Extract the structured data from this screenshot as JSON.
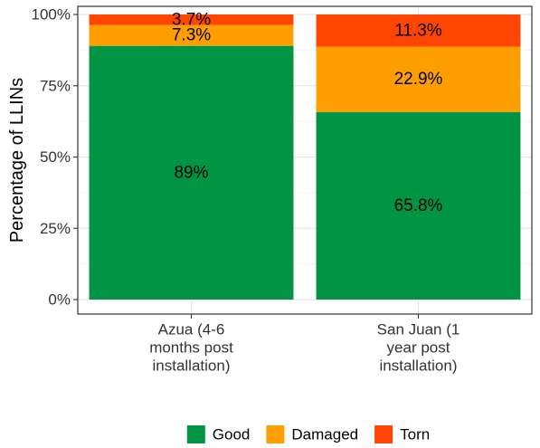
{
  "chart_data": {
    "type": "bar",
    "stacked": true,
    "normalized": true,
    "categories": [
      [
        "Azua (4-6",
        "months post",
        "installation)"
      ],
      [
        "San Juan (1",
        "year post",
        "installation)"
      ]
    ],
    "series": [
      {
        "name": "Good",
        "color": "#009444",
        "values": [
          89.0,
          65.8
        ],
        "labels": [
          "89%",
          "65.8%"
        ]
      },
      {
        "name": "Damaged",
        "color": "#FF9E00",
        "values": [
          7.3,
          22.9
        ],
        "labels": [
          "7.3%",
          "22.9%"
        ]
      },
      {
        "name": "Torn",
        "color": "#FF4500",
        "values": [
          3.7,
          11.3
        ],
        "labels": [
          "3.7%",
          "11.3%"
        ]
      }
    ],
    "ylabel": "Percentage of LLINs",
    "ylim": [
      0,
      100
    ],
    "yticks": [
      0,
      25,
      50,
      75,
      100
    ],
    "ytick_labels": [
      "0%",
      "25%",
      "50%",
      "75%",
      "100%"
    ],
    "grid": true,
    "legend_position": "bottom"
  }
}
